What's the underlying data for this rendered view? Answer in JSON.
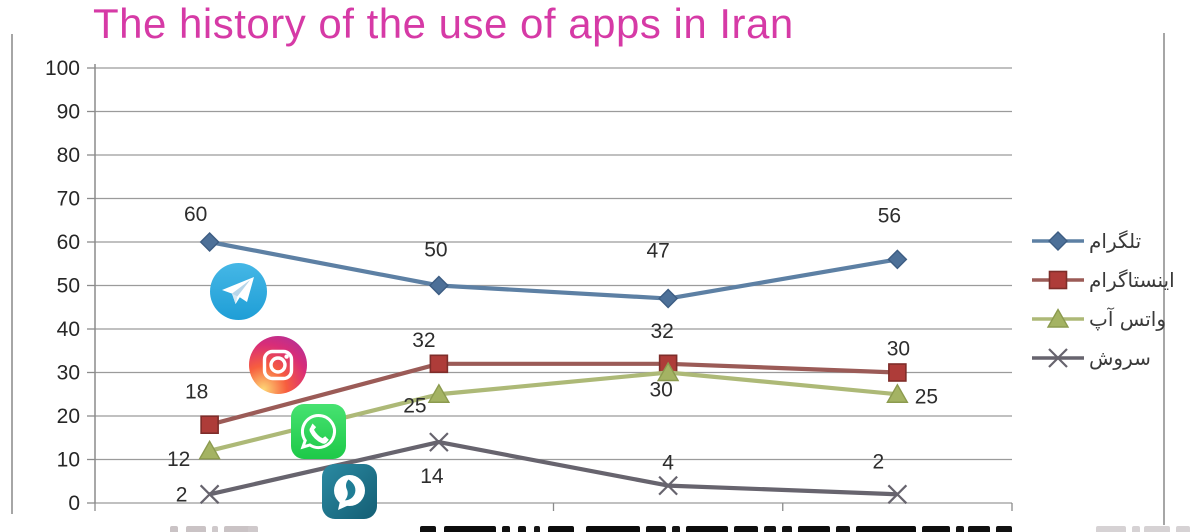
{
  "title": "The history of the use of apps in Iran",
  "title_color": "#d63aa6",
  "chart_data": {
    "type": "line",
    "title": "The history of the use of apps in Iran",
    "x_categories": [
      "",
      "",
      "",
      ""
    ],
    "x_axis_note": "category labels cut off at bottom edge of screenshot",
    "ylim": [
      0,
      100
    ],
    "y_ticks": [
      0,
      10,
      20,
      30,
      40,
      50,
      60,
      70,
      80,
      90,
      100
    ],
    "grid": true,
    "legend_position": "right",
    "grid_color": "#9b9b9b",
    "axis_color": "#8b8b8b",
    "tick_label_color": "#262626",
    "data_label_color": "#2d2d2d",
    "series": [
      {
        "key": "telegram",
        "name": "تلگرام",
        "values": [
          60,
          50,
          47,
          56
        ],
        "color": "#5d80a4",
        "marker": "diamond",
        "marker_fill": "#4d7098",
        "marker_stroke": "#3d5d83",
        "label_offsets": [
          [
            -14,
            -21
          ],
          [
            -3,
            -29
          ],
          [
            -10,
            -41
          ],
          [
            -8,
            -37
          ]
        ]
      },
      {
        "key": "instagram",
        "name": "اینستاگرام",
        "values": [
          18,
          32,
          32,
          30
        ],
        "color": "#9b5b57",
        "marker": "square",
        "marker_fill": "#ae3c39",
        "marker_stroke": "#7e2d2a",
        "label_offsets": [
          [
            -13,
            -26
          ],
          [
            -15,
            -17
          ],
          [
            -6,
            -26
          ],
          [
            1,
            -17
          ]
        ]
      },
      {
        "key": "whatsapp",
        "name": "واتس آپ",
        "values": [
          12,
          25,
          30,
          25
        ],
        "color": "#adb977",
        "marker": "triangle",
        "marker_fill": "#a4b363",
        "marker_stroke": "#8c9b4f",
        "label_offsets": [
          [
            -31,
            15
          ],
          [
            -24,
            18
          ],
          [
            -7,
            24
          ],
          [
            29,
            9
          ]
        ]
      },
      {
        "key": "soroush",
        "name": "سروش",
        "values": [
          2,
          14,
          4,
          2
        ],
        "color": "#67646e",
        "marker": "x",
        "marker_fill": "none",
        "marker_stroke": "#67646e",
        "label_offsets": [
          [
            -28,
            7
          ],
          [
            -7,
            41
          ],
          [
            0,
            -16
          ],
          [
            -19,
            -26
          ]
        ]
      }
    ]
  },
  "icons": [
    {
      "key": "telegram-icon",
      "color": "#33ade2"
    },
    {
      "key": "instagram-icon",
      "colors": [
        "#fdd776",
        "#f75e3e",
        "#d92d77",
        "#9b2fae"
      ]
    },
    {
      "key": "whatsapp-icon",
      "color": "#2bd457"
    },
    {
      "key": "soroush-icon",
      "color": "#1f7d95"
    }
  ]
}
